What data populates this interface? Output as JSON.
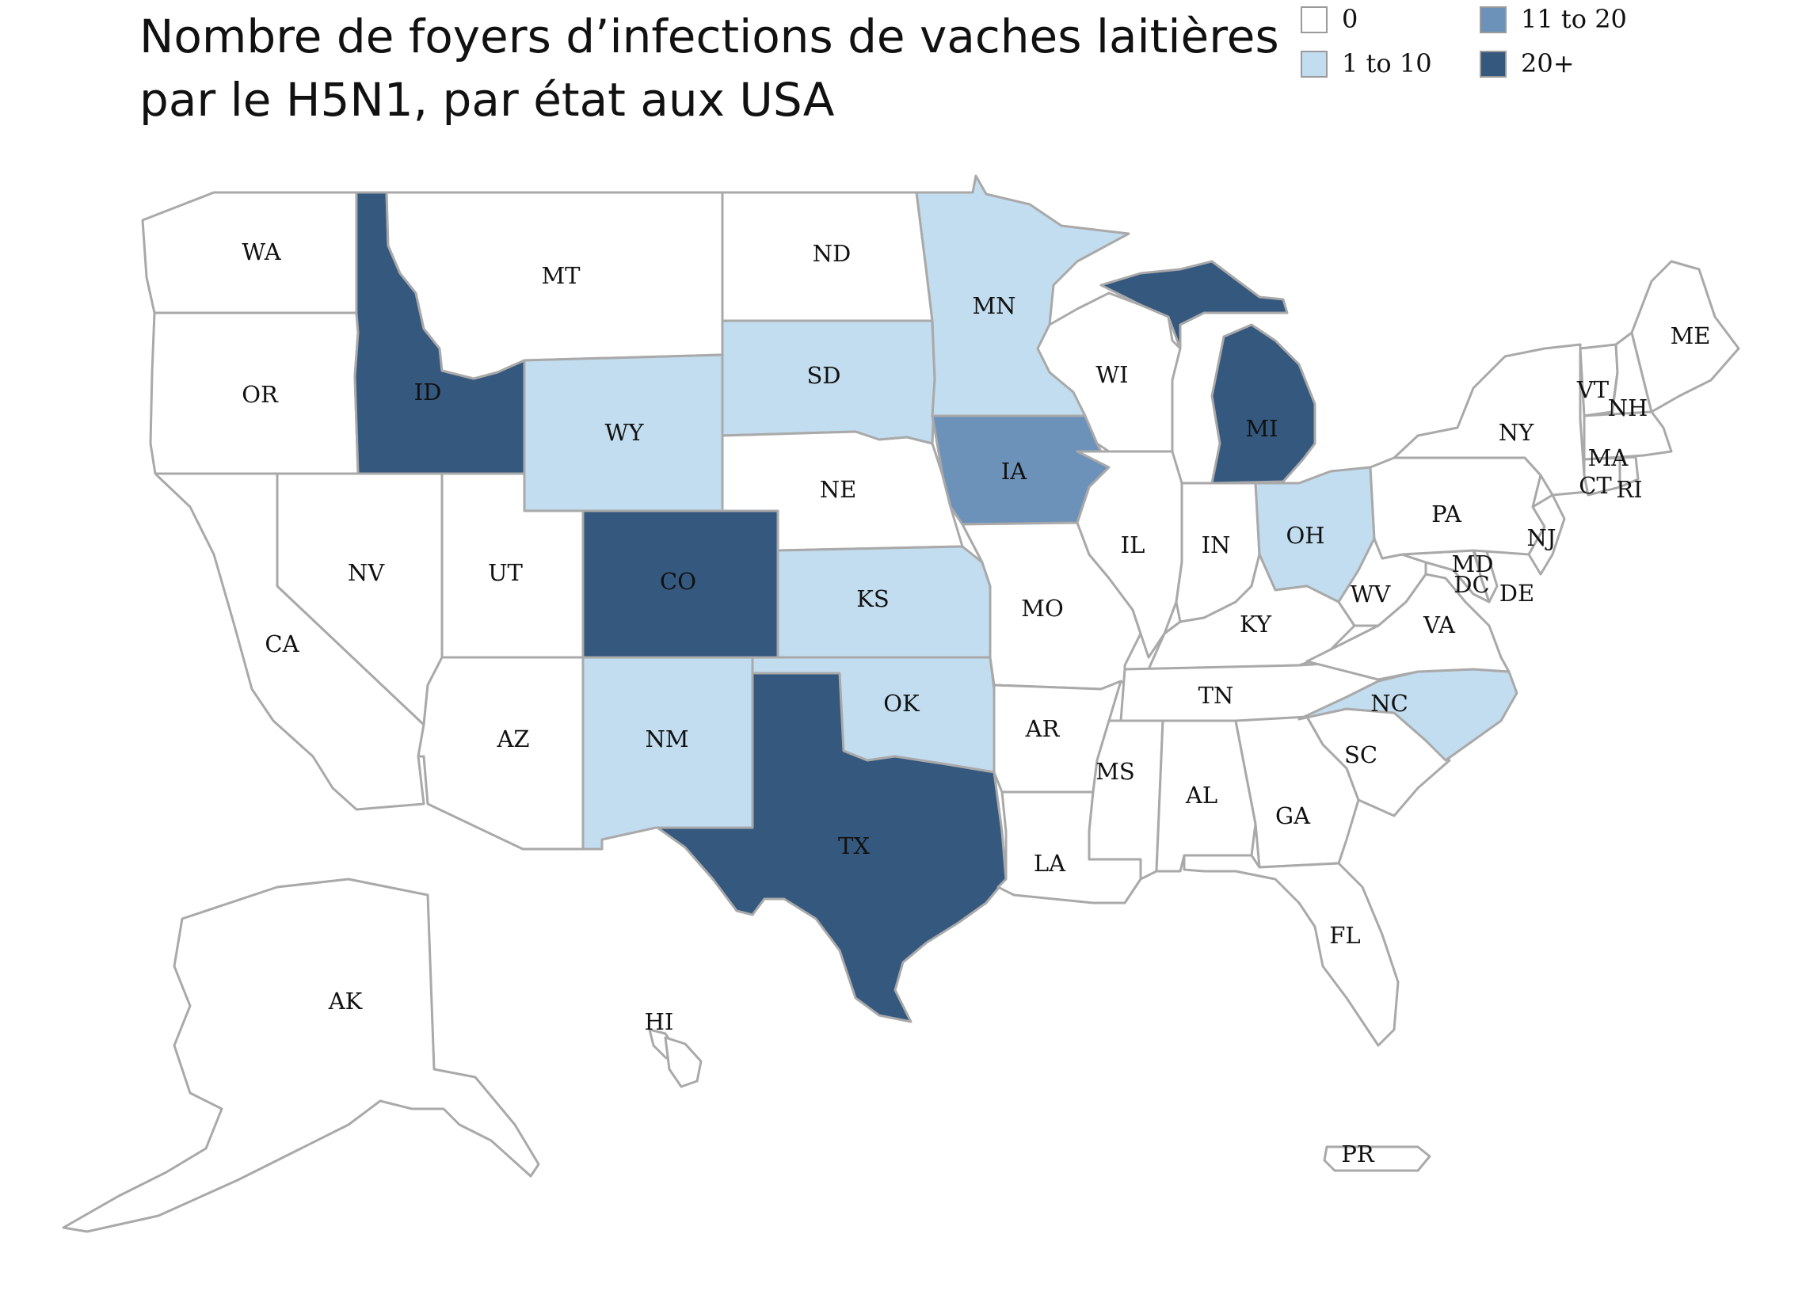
{
  "title": {
    "line1": "Nombre de foyers d’infections de vaches laitières",
    "line2": "par le H5N1, par état aux USA"
  },
  "legend": [
    {
      "label": "0",
      "color": "#ffffff"
    },
    {
      "label": "1 to 10",
      "color": "#c2ddef"
    },
    {
      "label": "11 to 20",
      "color": "#6d92ba"
    },
    {
      "label": "20+",
      "color": "#34587e"
    }
  ],
  "states": [
    {
      "code": "WA",
      "category": "0"
    },
    {
      "code": "OR",
      "category": "0"
    },
    {
      "code": "CA",
      "category": "0"
    },
    {
      "code": "NV",
      "category": "0"
    },
    {
      "code": "ID",
      "category": "20+"
    },
    {
      "code": "MT",
      "category": "0"
    },
    {
      "code": "WY",
      "category": "1 to 10"
    },
    {
      "code": "UT",
      "category": "0"
    },
    {
      "code": "AZ",
      "category": "0"
    },
    {
      "code": "CO",
      "category": "20+"
    },
    {
      "code": "NM",
      "category": "1 to 10"
    },
    {
      "code": "ND",
      "category": "0"
    },
    {
      "code": "SD",
      "category": "1 to 10"
    },
    {
      "code": "NE",
      "category": "0"
    },
    {
      "code": "KS",
      "category": "1 to 10"
    },
    {
      "code": "OK",
      "category": "1 to 10"
    },
    {
      "code": "TX",
      "category": "20+"
    },
    {
      "code": "MN",
      "category": "1 to 10"
    },
    {
      "code": "IA",
      "category": "11 to 20"
    },
    {
      "code": "MO",
      "category": "0"
    },
    {
      "code": "AR",
      "category": "0"
    },
    {
      "code": "LA",
      "category": "0"
    },
    {
      "code": "WI",
      "category": "0"
    },
    {
      "code": "IL",
      "category": "0"
    },
    {
      "code": "MI",
      "category": "20+"
    },
    {
      "code": "IN",
      "category": "0"
    },
    {
      "code": "OH",
      "category": "1 to 10"
    },
    {
      "code": "KY",
      "category": "0"
    },
    {
      "code": "TN",
      "category": "0"
    },
    {
      "code": "MS",
      "category": "0"
    },
    {
      "code": "AL",
      "category": "0"
    },
    {
      "code": "GA",
      "category": "0"
    },
    {
      "code": "FL",
      "category": "0"
    },
    {
      "code": "SC",
      "category": "0"
    },
    {
      "code": "NC",
      "category": "1 to 10"
    },
    {
      "code": "VA",
      "category": "0"
    },
    {
      "code": "WV",
      "category": "0"
    },
    {
      "code": "MD",
      "category": "0"
    },
    {
      "code": "DC",
      "category": "0"
    },
    {
      "code": "DE",
      "category": "0"
    },
    {
      "code": "PA",
      "category": "0"
    },
    {
      "code": "NJ",
      "category": "0"
    },
    {
      "code": "NY",
      "category": "0"
    },
    {
      "code": "CT",
      "category": "0"
    },
    {
      "code": "RI",
      "category": "0"
    },
    {
      "code": "MA",
      "category": "0"
    },
    {
      "code": "VT",
      "category": "0"
    },
    {
      "code": "NH",
      "category": "0"
    },
    {
      "code": "ME",
      "category": "0"
    },
    {
      "code": "AK",
      "category": "0"
    },
    {
      "code": "HI",
      "category": "0"
    },
    {
      "code": "PR",
      "category": "0"
    }
  ]
}
